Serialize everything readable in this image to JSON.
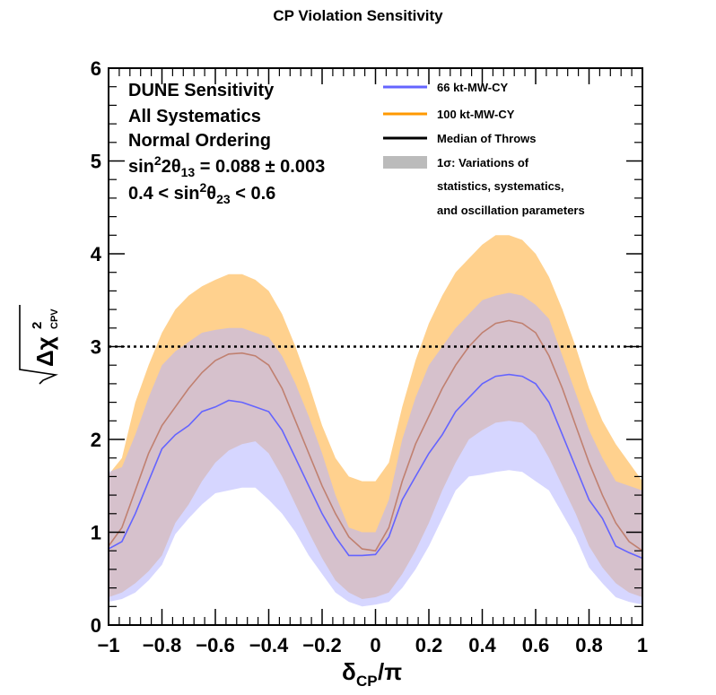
{
  "chart_data": {
    "type": "line",
    "title": "CP Violation Sensitivity",
    "xlabel": "δ_CP/π",
    "ylabel": "√Δχ²_CPV",
    "xlim": [
      -1,
      1
    ],
    "ylim": [
      0,
      6
    ],
    "x_ticks": [
      "−1",
      "−0.8",
      "−0.6",
      "−0.4",
      "−0.2",
      "0",
      "0.2",
      "0.4",
      "0.6",
      "0.8",
      "1"
    ],
    "y_ticks": [
      "0",
      "1",
      "2",
      "3",
      "4",
      "5",
      "6"
    ],
    "threshold": 3,
    "x": [
      -1,
      -0.95,
      -0.9,
      -0.85,
      -0.8,
      -0.75,
      -0.7,
      -0.65,
      -0.6,
      -0.55,
      -0.5,
      -0.45,
      -0.4,
      -0.35,
      -0.3,
      -0.25,
      -0.2,
      -0.15,
      -0.1,
      -0.05,
      0,
      0.05,
      0.1,
      0.15,
      0.2,
      0.25,
      0.3,
      0.35,
      0.4,
      0.45,
      0.5,
      0.55,
      0.6,
      0.65,
      0.7,
      0.75,
      0.8,
      0.85,
      0.9,
      0.95,
      1
    ],
    "series": [
      {
        "name": "66 kt-MW-CY",
        "color": "#6464ff",
        "fill": "#b4b4ff",
        "median": [
          0.82,
          0.9,
          1.2,
          1.55,
          1.9,
          2.05,
          2.15,
          2.3,
          2.35,
          2.42,
          2.4,
          2.35,
          2.3,
          2.1,
          1.8,
          1.5,
          1.2,
          0.95,
          0.75,
          0.75,
          0.76,
          0.95,
          1.35,
          1.6,
          1.85,
          2.05,
          2.3,
          2.45,
          2.6,
          2.68,
          2.7,
          2.68,
          2.6,
          2.4,
          2.05,
          1.7,
          1.35,
          1.15,
          0.85,
          0.78,
          0.72
        ],
        "lower": [
          0.25,
          0.28,
          0.35,
          0.48,
          0.65,
          0.98,
          1.15,
          1.3,
          1.42,
          1.45,
          1.48,
          1.48,
          1.35,
          1.2,
          1.0,
          0.75,
          0.55,
          0.35,
          0.25,
          0.2,
          0.22,
          0.25,
          0.4,
          0.6,
          0.85,
          1.15,
          1.45,
          1.6,
          1.62,
          1.65,
          1.67,
          1.65,
          1.55,
          1.45,
          1.2,
          0.95,
          0.62,
          0.45,
          0.3,
          0.25,
          0.22
        ],
        "upper": [
          1.65,
          1.7,
          2.05,
          2.45,
          2.8,
          2.95,
          3.05,
          3.15,
          3.18,
          3.2,
          3.2,
          3.15,
          3.1,
          2.9,
          2.6,
          2.25,
          1.85,
          1.4,
          1.05,
          1.0,
          1.0,
          1.35,
          2.0,
          2.45,
          2.8,
          3.0,
          3.2,
          3.35,
          3.5,
          3.55,
          3.58,
          3.55,
          3.45,
          3.3,
          2.9,
          2.5,
          2.1,
          1.8,
          1.55,
          1.5,
          1.45
        ]
      },
      {
        "name": "100 kt-MW-CY",
        "color": "#ff9900",
        "fill": "#ffc97a",
        "median": [
          0.85,
          1.05,
          1.45,
          1.85,
          2.15,
          2.35,
          2.55,
          2.72,
          2.85,
          2.92,
          2.93,
          2.9,
          2.8,
          2.55,
          2.2,
          1.85,
          1.5,
          1.2,
          0.95,
          0.82,
          0.8,
          1.05,
          1.55,
          1.95,
          2.25,
          2.55,
          2.8,
          3.0,
          3.15,
          3.25,
          3.28,
          3.25,
          3.15,
          2.9,
          2.55,
          2.15,
          1.75,
          1.4,
          1.1,
          0.9,
          0.8
        ],
        "lower": [
          0.3,
          0.35,
          0.45,
          0.58,
          0.75,
          1.1,
          1.3,
          1.55,
          1.75,
          1.88,
          1.95,
          1.98,
          1.85,
          1.6,
          1.3,
          1.0,
          0.72,
          0.48,
          0.35,
          0.28,
          0.3,
          0.35,
          0.55,
          0.8,
          1.1,
          1.45,
          1.75,
          2.0,
          2.1,
          2.18,
          2.2,
          2.18,
          2.05,
          1.8,
          1.5,
          1.2,
          0.85,
          0.62,
          0.45,
          0.35,
          0.3
        ],
        "upper": [
          1.62,
          1.8,
          2.4,
          2.8,
          3.15,
          3.4,
          3.55,
          3.65,
          3.72,
          3.78,
          3.78,
          3.72,
          3.6,
          3.35,
          3.0,
          2.6,
          2.15,
          1.8,
          1.6,
          1.55,
          1.55,
          1.75,
          2.35,
          2.85,
          3.25,
          3.55,
          3.8,
          3.95,
          4.1,
          4.2,
          4.2,
          4.15,
          4.0,
          3.75,
          3.4,
          3.0,
          2.55,
          2.2,
          1.95,
          1.75,
          1.55
        ]
      }
    ],
    "annotations": [
      "DUNE Sensitivity",
      "All Systematics",
      "Normal Ordering",
      "sin²2θ₁₃ = 0.088 ± 0.003",
      "0.4 < sin²θ₂₃ < 0.6"
    ],
    "legend": {
      "placement": "top-right",
      "entries": [
        {
          "label": "66 kt-MW-CY",
          "color": "#6464ff",
          "kind": "line"
        },
        {
          "label": "100 kt-MW-CY",
          "color": "#ff9900",
          "kind": "line"
        },
        {
          "label": "Median of Throws",
          "color": "#000000",
          "kind": "line"
        },
        {
          "label": "1σ: Variations of",
          "color": "#bbbbbb",
          "kind": "box"
        },
        {
          "label": "statistics, systematics,",
          "kind": "text"
        },
        {
          "label": "and oscillation parameters",
          "kind": "text"
        }
      ]
    }
  }
}
